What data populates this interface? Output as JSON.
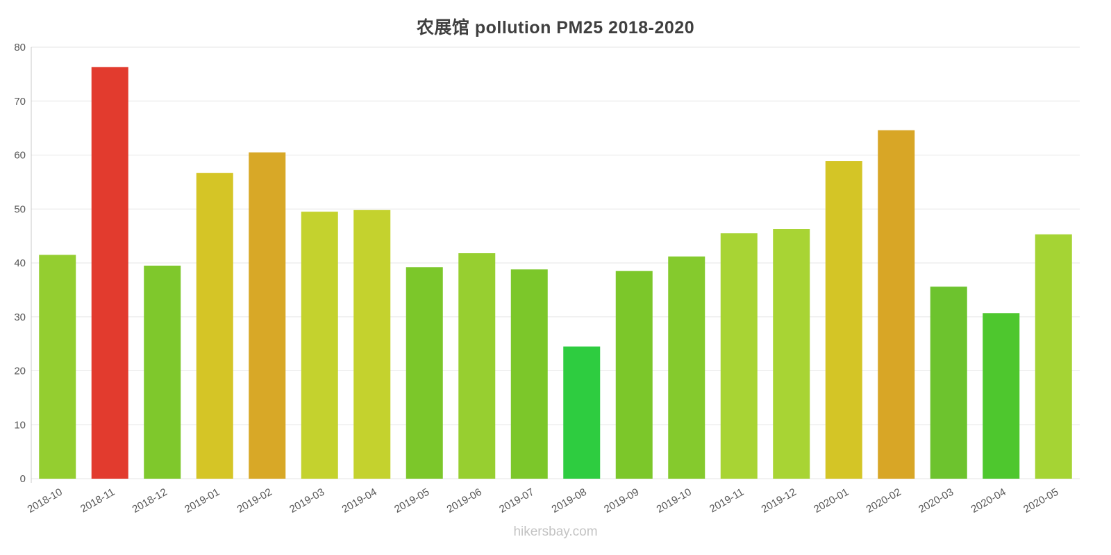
{
  "chart_data": {
    "type": "bar",
    "title": "农展馆 pollution PM25 2018-2020",
    "footer": "hikersbay.com",
    "xlabel": "",
    "ylabel": "",
    "ylim": [
      0,
      80
    ],
    "yticks": [
      0,
      10,
      20,
      30,
      40,
      50,
      60,
      70,
      80
    ],
    "grid": true,
    "legend_position": "none",
    "categories": [
      "2018-10",
      "2018-11",
      "2018-12",
      "2019-01",
      "2019-02",
      "2019-03",
      "2019-04",
      "2019-05",
      "2019-06",
      "2019-07",
      "2019-08",
      "2019-09",
      "2019-10",
      "2019-11",
      "2019-12",
      "2020-01",
      "2020-02",
      "2020-03",
      "2020-04",
      "2020-05"
    ],
    "values": [
      41.5,
      76.3,
      39.5,
      56.7,
      60.5,
      49.5,
      49.8,
      39.2,
      41.8,
      38.8,
      24.5,
      38.5,
      41.2,
      45.5,
      46.3,
      58.9,
      64.6,
      35.6,
      30.7,
      45.3
    ],
    "bar_colors": [
      "#94ce30",
      "#e23b2e",
      "#7fc82c",
      "#d5c526",
      "#d8a827",
      "#c4d22e",
      "#c4d22e",
      "#7cc72a",
      "#97cf30",
      "#7cc72a",
      "#2ecc40",
      "#7cc72a",
      "#85ca2d",
      "#a8d434",
      "#a8d434",
      "#d4c526",
      "#d8a626",
      "#6dc32e",
      "#4ec72e",
      "#a5d434"
    ],
    "axis_color": "#c8c8c8",
    "grid_color": "#e6e6e6",
    "tick_color": "#565656",
    "title_color": "#3f3f3f",
    "footer_color": "#c3c3c3"
  }
}
